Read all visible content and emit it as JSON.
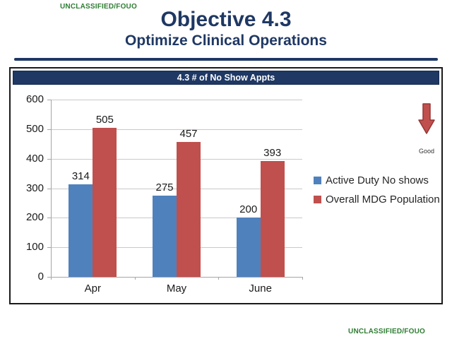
{
  "classification": {
    "top": "UNCLASSIFIED/FOUO",
    "bottom": "UNCLASSIFIED/FOUO"
  },
  "header": {
    "title": "Objective 4.3",
    "subtitle": "Optimize Clinical Operations"
  },
  "panel": {
    "title": "4.3 # of No Show Appts"
  },
  "annotation": {
    "label": "Good",
    "arrow_direction": "down",
    "arrow_fill": "#C0504D",
    "arrow_stroke": "#963634"
  },
  "colors": {
    "navy": "#1F3864",
    "classification_green": "#2E7D32",
    "gridline": "#C9C9C9",
    "axis": "#A6A6A6",
    "chart_text": "#1a1a1a"
  },
  "chart_data": {
    "type": "bar",
    "title": "4.3 # of No Show Appts",
    "categories": [
      "Apr",
      "May",
      "June"
    ],
    "series": [
      {
        "name": "Active Duty No shows",
        "color": "#4F81BD",
        "values": [
          314,
          275,
          200
        ]
      },
      {
        "name": "Overall MDG Population",
        "color": "#C0504D",
        "values": [
          505,
          457,
          393
        ]
      }
    ],
    "ylim": [
      0,
      600
    ],
    "ytick_step": 100,
    "yticks": [
      0,
      100,
      200,
      300,
      400,
      500,
      600
    ],
    "grid": true,
    "data_labels": true,
    "legend_position": "right",
    "xlabel": "",
    "ylabel": ""
  }
}
